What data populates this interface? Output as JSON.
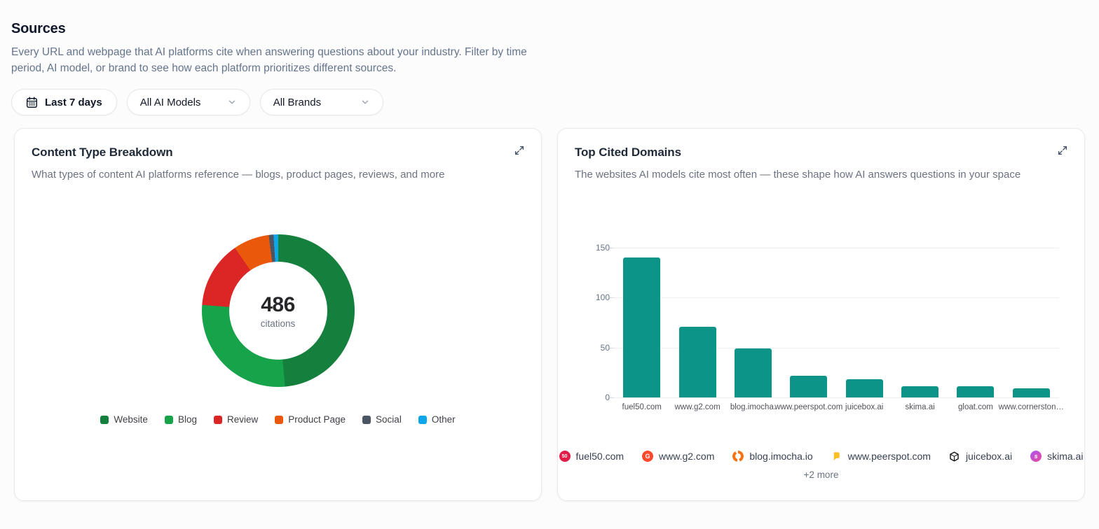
{
  "page": {
    "title": "Sources",
    "description": "Every URL and webpage that AI platforms cite when answering questions about your industry. Filter by time period, AI model, or brand to see how each platform prioritizes different sources."
  },
  "filters": {
    "date_range": "Last 7 days",
    "model_select": "All AI Models",
    "brand_select": "All Brands"
  },
  "cards": {
    "content_type": {
      "title": "Content Type Breakdown",
      "subtitle": "What types of content AI platforms reference — blogs, product pages, reviews, and more",
      "center_value": "486",
      "center_label": "citations"
    },
    "top_domains": {
      "title": "Top Cited Domains",
      "subtitle": "The websites AI models cite most often — these shape how AI answers questions in your space",
      "more_label": "+2 more",
      "favicons": [
        {
          "domain": "fuel50.com",
          "icon": "fuel50-favicon",
          "shape": "circle",
          "color": "#e11d48",
          "glyph": "50"
        },
        {
          "domain": "www.g2.com",
          "icon": "g2-favicon",
          "shape": "circle",
          "color": "#ff492c",
          "glyph": "G"
        },
        {
          "domain": "blog.imocha.io",
          "icon": "imocha-favicon",
          "shape": "ring",
          "color": "#f97316"
        },
        {
          "domain": "www.peerspot.com",
          "icon": "peerspot-favicon",
          "shape": "flag",
          "color": "#fbbf24"
        },
        {
          "domain": "juicebox.ai",
          "icon": "juicebox-favicon",
          "shape": "cube",
          "color": "#111111"
        },
        {
          "domain": "skima.ai",
          "icon": "skima-favicon",
          "shape": "gradient",
          "color": "#a855f7",
          "color2": "#ec4899"
        }
      ]
    }
  },
  "chart_data": [
    {
      "type": "pie",
      "title": "Content Type Breakdown",
      "center_total": 486,
      "center_label": "citations",
      "legend_position": "bottom",
      "segments": [
        {
          "label": "Website",
          "value": 236,
          "percent": 48.6,
          "color": "#15803d"
        },
        {
          "label": "Blog",
          "value": 134,
          "percent": 27.6,
          "color": "#16a34a"
        },
        {
          "label": "Review",
          "value": 69,
          "percent": 14.2,
          "color": "#dc2626"
        },
        {
          "label": "Product Page",
          "value": 37,
          "percent": 7.6,
          "color": "#ea580c"
        },
        {
          "label": "Social",
          "value": 5,
          "percent": 1.0,
          "color": "#4b5563"
        },
        {
          "label": "Other",
          "value": 5,
          "percent": 1.0,
          "color": "#0ea5e9"
        }
      ]
    },
    {
      "type": "bar",
      "title": "Top Cited Domains",
      "categories": [
        "fuel50.com",
        "www.g2.com",
        "blog.imocha.",
        "www.peerspot.com",
        "juicebox.ai",
        "skima.ai",
        "gloat.com",
        "www.cornerston…"
      ],
      "values": [
        140,
        71,
        49,
        22,
        18,
        11,
        11,
        9
      ],
      "bar_color": "#0d9488",
      "ylim": [
        0,
        150
      ],
      "yticks": [
        0,
        50,
        100,
        150
      ],
      "grid": true,
      "xlabel": "",
      "ylabel": ""
    }
  ]
}
